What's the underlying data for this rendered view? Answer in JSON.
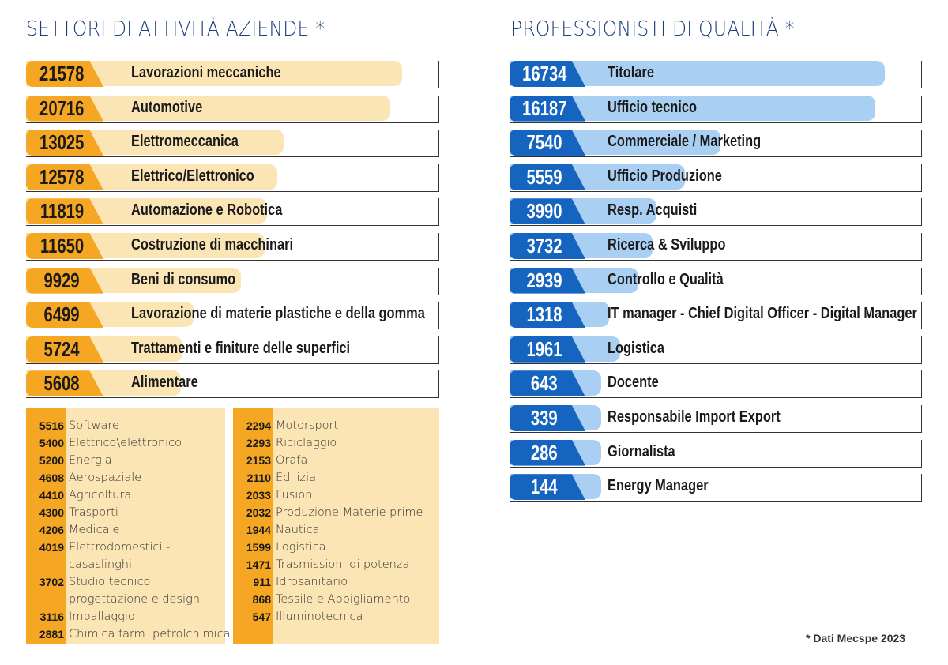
{
  "title_left": "SETTORI DI ATTIVITÀ AZIENDE *",
  "title_right": "PROFESSIONISTI DI QUALITÀ *",
  "footnote": "* Dati Mecspe 2023",
  "colors": {
    "title_left": "#1a3f7a",
    "title_right": "#1a3f7a",
    "orange": "#f5a623",
    "orange_light": "#fbe5b5",
    "blue": "#1565c0",
    "blue_light": "#a9d0f2"
  },
  "chart_data": [
    {
      "type": "bar",
      "title": "SETTORI DI ATTIVITÀ AZIENDE *",
      "categories": [
        "Lavorazioni meccaniche",
        "Automotive",
        "Elettromeccanica",
        "Elettrico/Elettronico",
        "Automazione e Robotica",
        "Costruzione di macchinari",
        "Beni di consumo",
        "Lavorazione di materie plastiche e della gomma",
        "Trattamenti e finiture delle superfici",
        "Alimentare"
      ],
      "values": [
        21578,
        20716,
        13025,
        12578,
        11819,
        11650,
        9929,
        6499,
        5724,
        5608
      ],
      "value_labels": [
        "21578",
        "20716",
        "13025",
        "12578",
        "11819",
        "11650",
        "9929",
        "6499",
        "5724",
        "5608"
      ]
    },
    {
      "type": "bar",
      "title": "PROFESSIONISTI DI QUALITÀ *",
      "categories": [
        "Titolare",
        "Ufficio tecnico",
        "Commerciale / Marketing",
        "Ufficio Produzione",
        "Resp. Acquisti",
        "Ricerca & Sviluppo",
        "Controllo e Qualità",
        "IT manager - Chief Digital Officer - Digital Manager",
        "Logistica",
        "Docente",
        "Responsabile Import Export",
        "Giornalista",
        "Energy Manager"
      ],
      "values": [
        16734,
        16187,
        7540,
        5559,
        3990,
        3732,
        2939,
        1318,
        1961,
        643,
        339,
        286,
        144
      ],
      "value_labels": [
        "16734",
        "16187",
        "7540",
        "5559",
        "3990",
        "3732",
        "2939",
        "1318",
        "1961",
        "643",
        "339",
        "286",
        "144"
      ]
    },
    {
      "type": "table",
      "columns": [
        [
          {
            "n": "5516",
            "name": "Software"
          },
          {
            "n": "5400",
            "name": "Elettrico\\elettronico"
          },
          {
            "n": "5200",
            "name": "Energia"
          },
          {
            "n": "4608",
            "name": "Aerospaziale"
          },
          {
            "n": "4410",
            "name": "Agricoltura"
          },
          {
            "n": "4300",
            "name": "Trasporti"
          },
          {
            "n": "4206",
            "name": "Medicale"
          },
          {
            "n": "4019",
            "name": "Elettrodomestici -"
          },
          {
            "n": "",
            "name": "casaslinghi"
          },
          {
            "n": "3702",
            "name": "Studio tecnico,"
          },
          {
            "n": "",
            "name": "progettazione e design"
          },
          {
            "n": "3116",
            "name": "Imballaggio"
          },
          {
            "n": "2881",
            "name": "Chimica farm. petrolchimica"
          }
        ],
        [
          {
            "n": "2294",
            "name": "Motorsport"
          },
          {
            "n": "2293",
            "name": "Riciclaggio"
          },
          {
            "n": "2153",
            "name": "Orafa"
          },
          {
            "n": "2110",
            "name": "Edilizia"
          },
          {
            "n": "2033",
            "name": "Fusioni"
          },
          {
            "n": "2032",
            "name": "Produzione Materie prime"
          },
          {
            "n": "1944",
            "name": "Nautica"
          },
          {
            "n": "1599",
            "name": "Logistica"
          },
          {
            "n": "1471",
            "name": "Trasmissioni di potenza"
          },
          {
            "n": "911",
            "name": "Idrosanitario"
          },
          {
            "n": "868",
            "name": "Tessile e Abbigliamento"
          },
          {
            "n": "547",
            "name": "Illuminotecnica"
          }
        ]
      ]
    }
  ]
}
